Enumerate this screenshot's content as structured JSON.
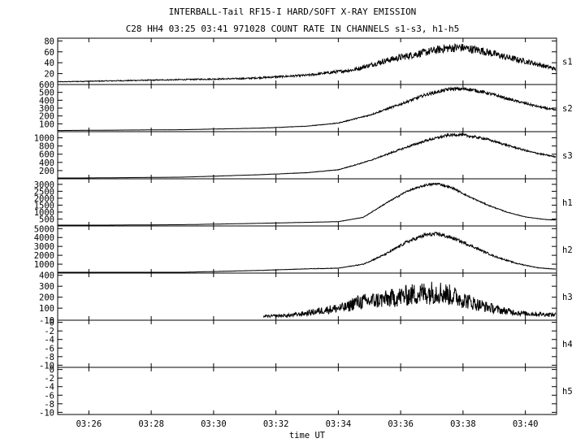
{
  "header": {
    "title": "INTERBALL-Tail RF15-I HARD/SOFT X-RAY EMISSION",
    "subtitle": "C28 HH4 03:25 03:41 971028  COUNT RATE IN CHANNELS s1-s3, h1-h5"
  },
  "chart_data": {
    "type": "line",
    "title": "INTERBALL-Tail RF15-I HARD/SOFT X-RAY EMISSION",
    "subtitle": "C28 HH4 03:25 03:41 971028  COUNT RATE IN CHANNELS s1-s3, h1-h5",
    "xlabel": "time UT",
    "x_ticks": [
      "03:26",
      "03:28",
      "03:30",
      "03:32",
      "03:34",
      "03:36",
      "03:38",
      "03:40"
    ],
    "x_tick_minutes": [
      26,
      28,
      30,
      32,
      34,
      36,
      38,
      40
    ],
    "xlim_minutes": [
      25.0,
      41.0
    ],
    "panels": [
      {
        "name": "s1",
        "ylim": [
          0,
          85
        ],
        "yticks": [
          20,
          40,
          60,
          80
        ],
        "noise": 0.12,
        "points": [
          [
            25.0,
            5
          ],
          [
            28.0,
            8
          ],
          [
            31.0,
            11
          ],
          [
            33.0,
            17
          ],
          [
            34.5,
            27
          ],
          [
            35.6,
            45
          ],
          [
            36.6,
            57
          ],
          [
            37.4,
            66
          ],
          [
            37.9,
            68
          ],
          [
            38.6,
            62
          ],
          [
            39.4,
            50
          ],
          [
            40.2,
            40
          ],
          [
            41.0,
            28
          ]
        ]
      },
      {
        "name": "s2",
        "ylim": [
          0,
          600
        ],
        "yticks": [
          100,
          200,
          300,
          400,
          500,
          600
        ],
        "noise": 0.04,
        "points": [
          [
            25.0,
            15
          ],
          [
            29.0,
            25
          ],
          [
            31.5,
            45
          ],
          [
            33.0,
            70
          ],
          [
            34.0,
            110
          ],
          [
            35.0,
            210
          ],
          [
            36.0,
            350
          ],
          [
            36.8,
            470
          ],
          [
            37.6,
            545
          ],
          [
            38.2,
            540
          ],
          [
            38.8,
            490
          ],
          [
            39.6,
            400
          ],
          [
            40.4,
            320
          ],
          [
            41.0,
            270
          ]
        ]
      },
      {
        "name": "s3",
        "ylim": [
          0,
          1150
        ],
        "yticks": [
          200,
          400,
          600,
          800,
          1000
        ],
        "noise": 0.03,
        "points": [
          [
            25.0,
            15
          ],
          [
            29.0,
            40
          ],
          [
            31.5,
            100
          ],
          [
            33.0,
            150
          ],
          [
            34.0,
            220
          ],
          [
            35.0,
            440
          ],
          [
            36.0,
            720
          ],
          [
            36.8,
            930
          ],
          [
            37.5,
            1060
          ],
          [
            37.9,
            1080
          ],
          [
            38.7,
            980
          ],
          [
            39.5,
            800
          ],
          [
            40.2,
            650
          ],
          [
            41.0,
            530
          ]
        ]
      },
      {
        "name": "h1",
        "ylim": [
          0,
          3400
        ],
        "yticks": [
          500,
          1000,
          1500,
          2000,
          2500,
          3000
        ],
        "noise": 0.025,
        "points": [
          [
            25.0,
            40
          ],
          [
            29.0,
            90
          ],
          [
            31.5,
            190
          ],
          [
            33.0,
            260
          ],
          [
            34.0,
            310
          ],
          [
            34.8,
            620
          ],
          [
            35.5,
            1600
          ],
          [
            36.2,
            2500
          ],
          [
            36.8,
            2950
          ],
          [
            37.2,
            3050
          ],
          [
            37.7,
            2700
          ],
          [
            38.2,
            2100
          ],
          [
            38.8,
            1500
          ],
          [
            39.4,
            1000
          ],
          [
            40.0,
            650
          ],
          [
            40.6,
            470
          ],
          [
            41.0,
            420
          ]
        ]
      },
      {
        "name": "h2",
        "ylim": [
          0,
          5300
        ],
        "yticks": [
          1000,
          2000,
          3000,
          4000,
          5000
        ],
        "noise": 0.05,
        "points": [
          [
            25.0,
            30
          ],
          [
            29.0,
            90
          ],
          [
            31.5,
            300
          ],
          [
            33.0,
            480
          ],
          [
            34.0,
            550
          ],
          [
            34.8,
            1000
          ],
          [
            35.5,
            2100
          ],
          [
            36.2,
            3500
          ],
          [
            36.8,
            4300
          ],
          [
            37.2,
            4400
          ],
          [
            37.7,
            3900
          ],
          [
            38.3,
            3000
          ],
          [
            39.0,
            1900
          ],
          [
            39.7,
            1100
          ],
          [
            40.4,
            600
          ],
          [
            41.0,
            430
          ]
        ]
      },
      {
        "name": "h3",
        "ylim": [
          -10,
          420
        ],
        "yticks": [
          -10,
          100,
          200,
          300,
          400
        ],
        "ytick_labels": [
          "-10",
          "100",
          "200",
          "300",
          "400"
        ],
        "noise": 0.45,
        "start_minute": 31.6,
        "points": [
          [
            31.6,
            25
          ],
          [
            32.5,
            35
          ],
          [
            33.0,
            55
          ],
          [
            33.5,
            80
          ],
          [
            34.3,
            110
          ],
          [
            34.5,
            150
          ],
          [
            35.5,
            180
          ],
          [
            36.5,
            230
          ],
          [
            37.2,
            250
          ],
          [
            37.8,
            200
          ],
          [
            38.5,
            130
          ],
          [
            39.2,
            80
          ],
          [
            40.0,
            50
          ],
          [
            41.0,
            40
          ]
        ]
      },
      {
        "name": "h4",
        "ylim": [
          -10.5,
          0.5
        ],
        "yticks": [
          -10,
          -8,
          -6,
          -4,
          -2,
          0
        ],
        "ytick_labels": [
          "-10",
          "-8",
          "-6",
          "-4",
          "-2",
          "0"
        ],
        "points": []
      },
      {
        "name": "h5",
        "ylim": [
          -10.5,
          0.5
        ],
        "yticks": [
          -10,
          -8,
          -6,
          -4,
          -2,
          0
        ],
        "ytick_labels": [
          "-10",
          "-8",
          "-6",
          "-4",
          "-2",
          "0"
        ],
        "points": []
      }
    ]
  }
}
